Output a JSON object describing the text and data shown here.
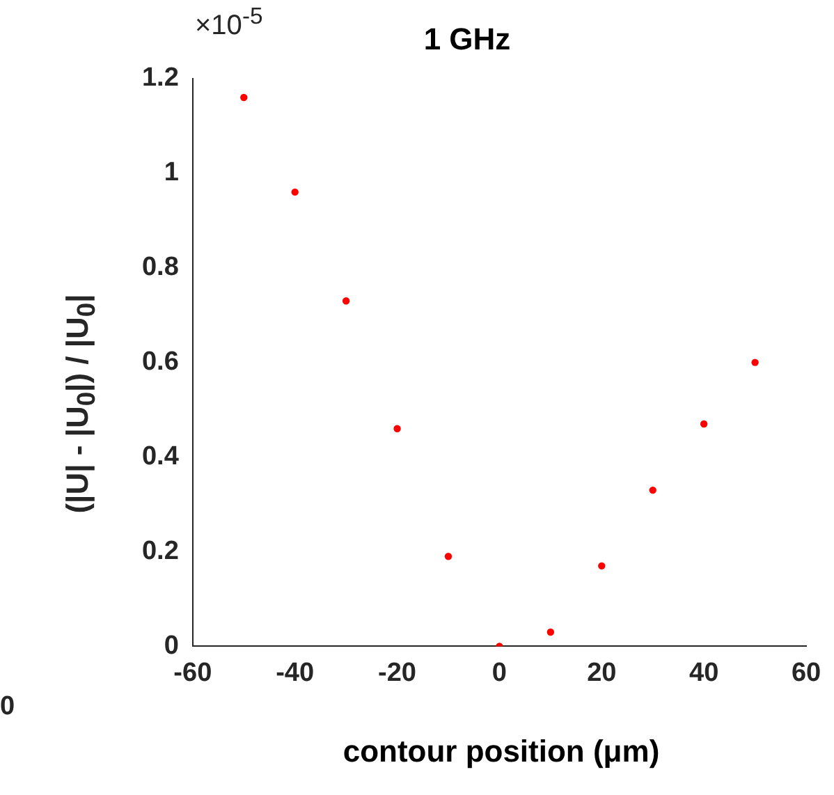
{
  "chart_data": {
    "type": "scatter",
    "title": "1 GHz",
    "xlabel": "contour position (μm)",
    "ylabel": "(|U| - |U$_{0}$|) / |U$_{0}$|",
    "x": [
      -50,
      -40,
      -30,
      -20,
      -10,
      0,
      10,
      20,
      30,
      40,
      50
    ],
    "series": [
      {
        "color": "#ff0000",
        "values": [
          1.16,
          0.96,
          0.73,
          0.46,
          0.19,
          0,
          0.03,
          0.17,
          0.33,
          0.47,
          0.6
        ]
      }
    ],
    "xlim": [
      -60,
      60
    ],
    "xticks": [
      -60,
      -40,
      -20,
      0,
      20,
      40,
      60
    ],
    "ylim": [
      0,
      1.2
    ],
    "yticks": [
      0,
      0.2,
      0.4,
      0.6,
      0.8,
      1,
      1.2
    ],
    "annotations": [
      "×10$^{-5}$",
      "0"
    ],
    "grid": false,
    "legend": false,
    "marker": "circle"
  }
}
